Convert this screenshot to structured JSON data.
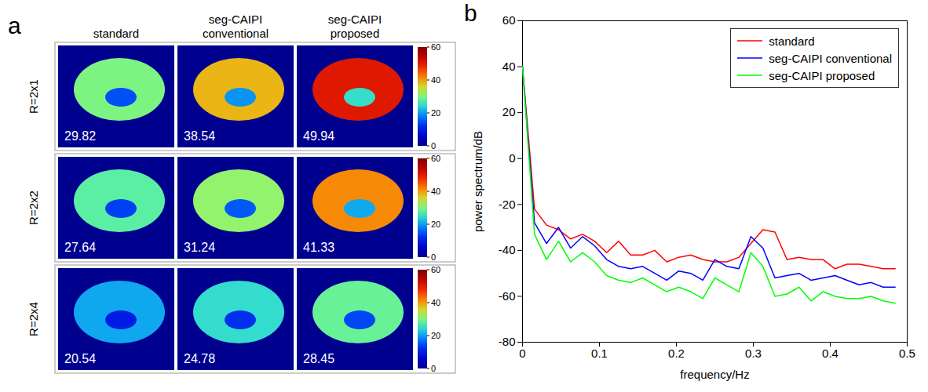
{
  "chart_data": [
    {
      "type": "image_grid",
      "panel": "a",
      "columns": [
        "standard",
        "seg-CAIPI conventional",
        "seg-CAIPI proposed"
      ],
      "rows": [
        "R=2x1",
        "R=2x2",
        "R=2x4"
      ],
      "values": [
        [
          29.82,
          38.54,
          49.94
        ],
        [
          27.64,
          31.24,
          41.33
        ],
        [
          20.54,
          24.78,
          28.45
        ]
      ],
      "data_labels": true,
      "colorbar": {
        "range": [
          0,
          60
        ],
        "ticks": [
          0,
          20,
          40,
          60
        ]
      }
    },
    {
      "type": "line",
      "panel": "b",
      "xlabel": "frequency/Hz",
      "ylabel": "power spectrum/dB",
      "x": [
        0,
        0.015625,
        0.03125,
        0.046875,
        0.0625,
        0.078125,
        0.09375,
        0.109375,
        0.125,
        0.140625,
        0.15625,
        0.171875,
        0.1875,
        0.203125,
        0.21875,
        0.234375,
        0.25,
        0.265625,
        0.28125,
        0.296875,
        0.3125,
        0.328125,
        0.34375,
        0.359375,
        0.375,
        0.390625,
        0.40625,
        0.421875,
        0.4375,
        0.453125,
        0.46875,
        0.484375
      ],
      "series": [
        {
          "name": "standard",
          "color": "#ff0000",
          "values": [
            40,
            -22,
            -29,
            -31,
            -35,
            -33,
            -36,
            -41,
            -36,
            -42,
            -42,
            -40,
            -45,
            -43,
            -42,
            -44,
            -45,
            -45,
            -43,
            -37,
            -31,
            -32,
            -44,
            -43,
            -44,
            -44,
            -48,
            -46,
            -46,
            -47,
            -48,
            -48
          ]
        },
        {
          "name": "seg-CAIPI conventional",
          "color": "#0000ff",
          "values": [
            40,
            -28,
            -37,
            -30,
            -39,
            -34,
            -38,
            -44,
            -47,
            -48,
            -47,
            -50,
            -53,
            -49,
            -50,
            -53,
            -44,
            -47,
            -48,
            -34,
            -39,
            -52,
            -51,
            -50,
            -53,
            -52,
            -51,
            -53,
            -55,
            -54,
            -56,
            -56
          ]
        },
        {
          "name": "seg-CAIPI proposed",
          "color": "#00ff00",
          "values": [
            40,
            -33,
            -44,
            -36,
            -45,
            -41,
            -45,
            -51,
            -53,
            -54,
            -52,
            -55,
            -58,
            -56,
            -58,
            -61,
            -52,
            -55,
            -58,
            -41,
            -47,
            -60,
            -59,
            -56,
            -62,
            -58,
            -60,
            -61,
            -61,
            -60,
            -62,
            -63
          ]
        }
      ],
      "xlim": [
        0,
        0.5
      ],
      "ylim": [
        -80,
        60
      ],
      "xticks": [
        0,
        0.1,
        0.2,
        0.3,
        0.4,
        0.5
      ],
      "yticks": [
        -80,
        -60,
        -40,
        -20,
        0,
        20,
        40,
        60
      ],
      "legend": "upper right",
      "grid": false
    }
  ]
}
